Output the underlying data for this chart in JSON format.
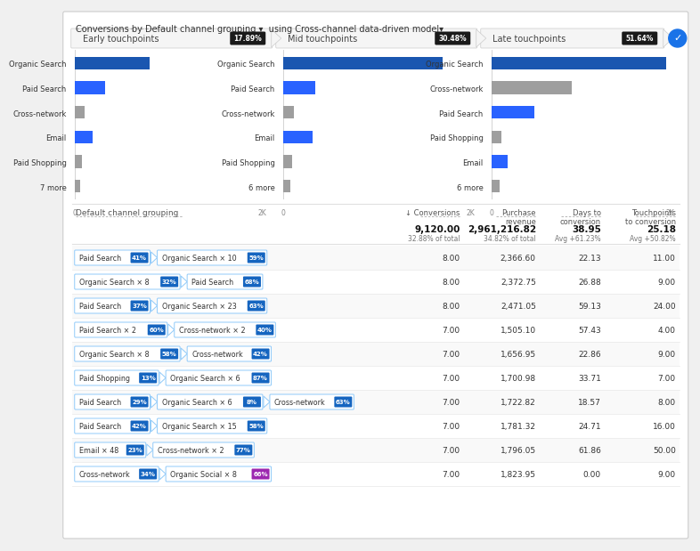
{
  "title_text": "Conversions by Default channel grouping ▾  using Cross-channel data-driven model▾",
  "touchpoints": [
    {
      "label": "Early touchpoints",
      "pct": "17.89%"
    },
    {
      "label": "Mid touchpoints",
      "pct": "30.48%"
    },
    {
      "label": "Late touchpoints",
      "pct": "51.64%"
    }
  ],
  "charts": [
    {
      "categories": [
        "Organic Search",
        "Paid Search",
        "Cross-network",
        "Email",
        "Paid Shopping",
        "7 more"
      ],
      "values": [
        800,
        320,
        110,
        190,
        75,
        55
      ],
      "colors": [
        "#1a56b0",
        "#2962ff",
        "#9e9e9e",
        "#2962ff",
        "#9e9e9e",
        "#9e9e9e"
      ]
    },
    {
      "categories": [
        "Organic Search",
        "Paid Search",
        "Cross-network",
        "Email",
        "Paid Shopping",
        "6 more"
      ],
      "values": [
        1700,
        340,
        115,
        310,
        95,
        80
      ],
      "colors": [
        "#1a56b0",
        "#2962ff",
        "#9e9e9e",
        "#2962ff",
        "#9e9e9e",
        "#9e9e9e"
      ]
    },
    {
      "categories": [
        "Organic Search",
        "Cross-network",
        "Paid Search",
        "Paid Shopping",
        "Email",
        "6 more"
      ],
      "values": [
        1950,
        900,
        480,
        110,
        180,
        95
      ],
      "colors": [
        "#1a56b0",
        "#9e9e9e",
        "#2962ff",
        "#9e9e9e",
        "#2962ff",
        "#9e9e9e"
      ]
    }
  ],
  "table_header": {
    "col1": "Default channel grouping",
    "col2": "↓ Conversions",
    "col3": "Purchase\nrevenue",
    "col4": "Days to\nconversion",
    "col5": "Touchpoints\nto conversion"
  },
  "table_summary": {
    "conv": "9,120.00",
    "conv_sub": "32.88% of total",
    "rev": "2,961,216.82",
    "rev_sub": "34.82% of total",
    "days": "38.95",
    "days_sub": "Avg +61.23%",
    "touch": "25.18",
    "touch_sub": "Avg +50.82%"
  },
  "rows": [
    {
      "path": [
        {
          "label": "Paid Search",
          "pct": "41%",
          "color": "#1565c0"
        },
        {
          "label": "Organic Search × 10",
          "pct": "59%",
          "color": "#1565c0"
        }
      ],
      "conv": "8.00",
      "rev": "2,366.60",
      "days": "22.13",
      "touch": "11.00"
    },
    {
      "path": [
        {
          "label": "Organic Search × 8",
          "pct": "32%",
          "color": "#1565c0"
        },
        {
          "label": "Paid Search",
          "pct": "68%",
          "color": "#1565c0"
        }
      ],
      "conv": "8.00",
      "rev": "2,372.75",
      "days": "26.88",
      "touch": "9.00"
    },
    {
      "path": [
        {
          "label": "Paid Search",
          "pct": "37%",
          "color": "#1565c0"
        },
        {
          "label": "Organic Search × 23",
          "pct": "63%",
          "color": "#1565c0"
        }
      ],
      "conv": "8.00",
      "rev": "2,471.05",
      "days": "59.13",
      "touch": "24.00"
    },
    {
      "path": [
        {
          "label": "Paid Search × 2",
          "pct": "60%",
          "color": "#1565c0"
        },
        {
          "label": "Cross-network × 2",
          "pct": "40%",
          "color": "#1565c0"
        }
      ],
      "conv": "7.00",
      "rev": "1,505.10",
      "days": "57.43",
      "touch": "4.00"
    },
    {
      "path": [
        {
          "label": "Organic Search × 8",
          "pct": "58%",
          "color": "#1565c0"
        },
        {
          "label": "Cross-network",
          "pct": "42%",
          "color": "#1565c0"
        }
      ],
      "conv": "7.00",
      "rev": "1,656.95",
      "days": "22.86",
      "touch": "9.00"
    },
    {
      "path": [
        {
          "label": "Paid Shopping",
          "pct": "13%",
          "color": "#1565c0"
        },
        {
          "label": "Organic Search × 6",
          "pct": "87%",
          "color": "#1565c0"
        }
      ],
      "conv": "7.00",
      "rev": "1,700.98",
      "days": "33.71",
      "touch": "7.00"
    },
    {
      "path": [
        {
          "label": "Paid Search",
          "pct": "29%",
          "color": "#1565c0"
        },
        {
          "label": "Organic Search × 6",
          "pct": "8%",
          "color": "#1565c0"
        },
        {
          "label": "Cross-network",
          "pct": "63%",
          "color": "#1565c0"
        }
      ],
      "conv": "7.00",
      "rev": "1,722.82",
      "days": "18.57",
      "touch": "8.00"
    },
    {
      "path": [
        {
          "label": "Paid Search",
          "pct": "42%",
          "color": "#1565c0"
        },
        {
          "label": "Organic Search × 15",
          "pct": "58%",
          "color": "#1565c0"
        }
      ],
      "conv": "7.00",
      "rev": "1,781.32",
      "days": "24.71",
      "touch": "16.00"
    },
    {
      "path": [
        {
          "label": "Email × 48",
          "pct": "23%",
          "color": "#1565c0"
        },
        {
          "label": "Cross-network × 2",
          "pct": "77%",
          "color": "#1565c0"
        }
      ],
      "conv": "7.00",
      "rev": "1,796.05",
      "days": "61.86",
      "touch": "50.00"
    },
    {
      "path": [
        {
          "label": "Cross-network",
          "pct": "34%",
          "color": "#1565c0"
        },
        {
          "label": "Organic Social × 8",
          "pct": "66%",
          "color": "#9c27b0"
        }
      ],
      "conv": "7.00",
      "rev": "1,823.95",
      "days": "0.00",
      "touch": "9.00"
    }
  ],
  "bg_color": "#f0f0f0",
  "card_color": "#ffffff",
  "border_color": "#e0e0e0"
}
